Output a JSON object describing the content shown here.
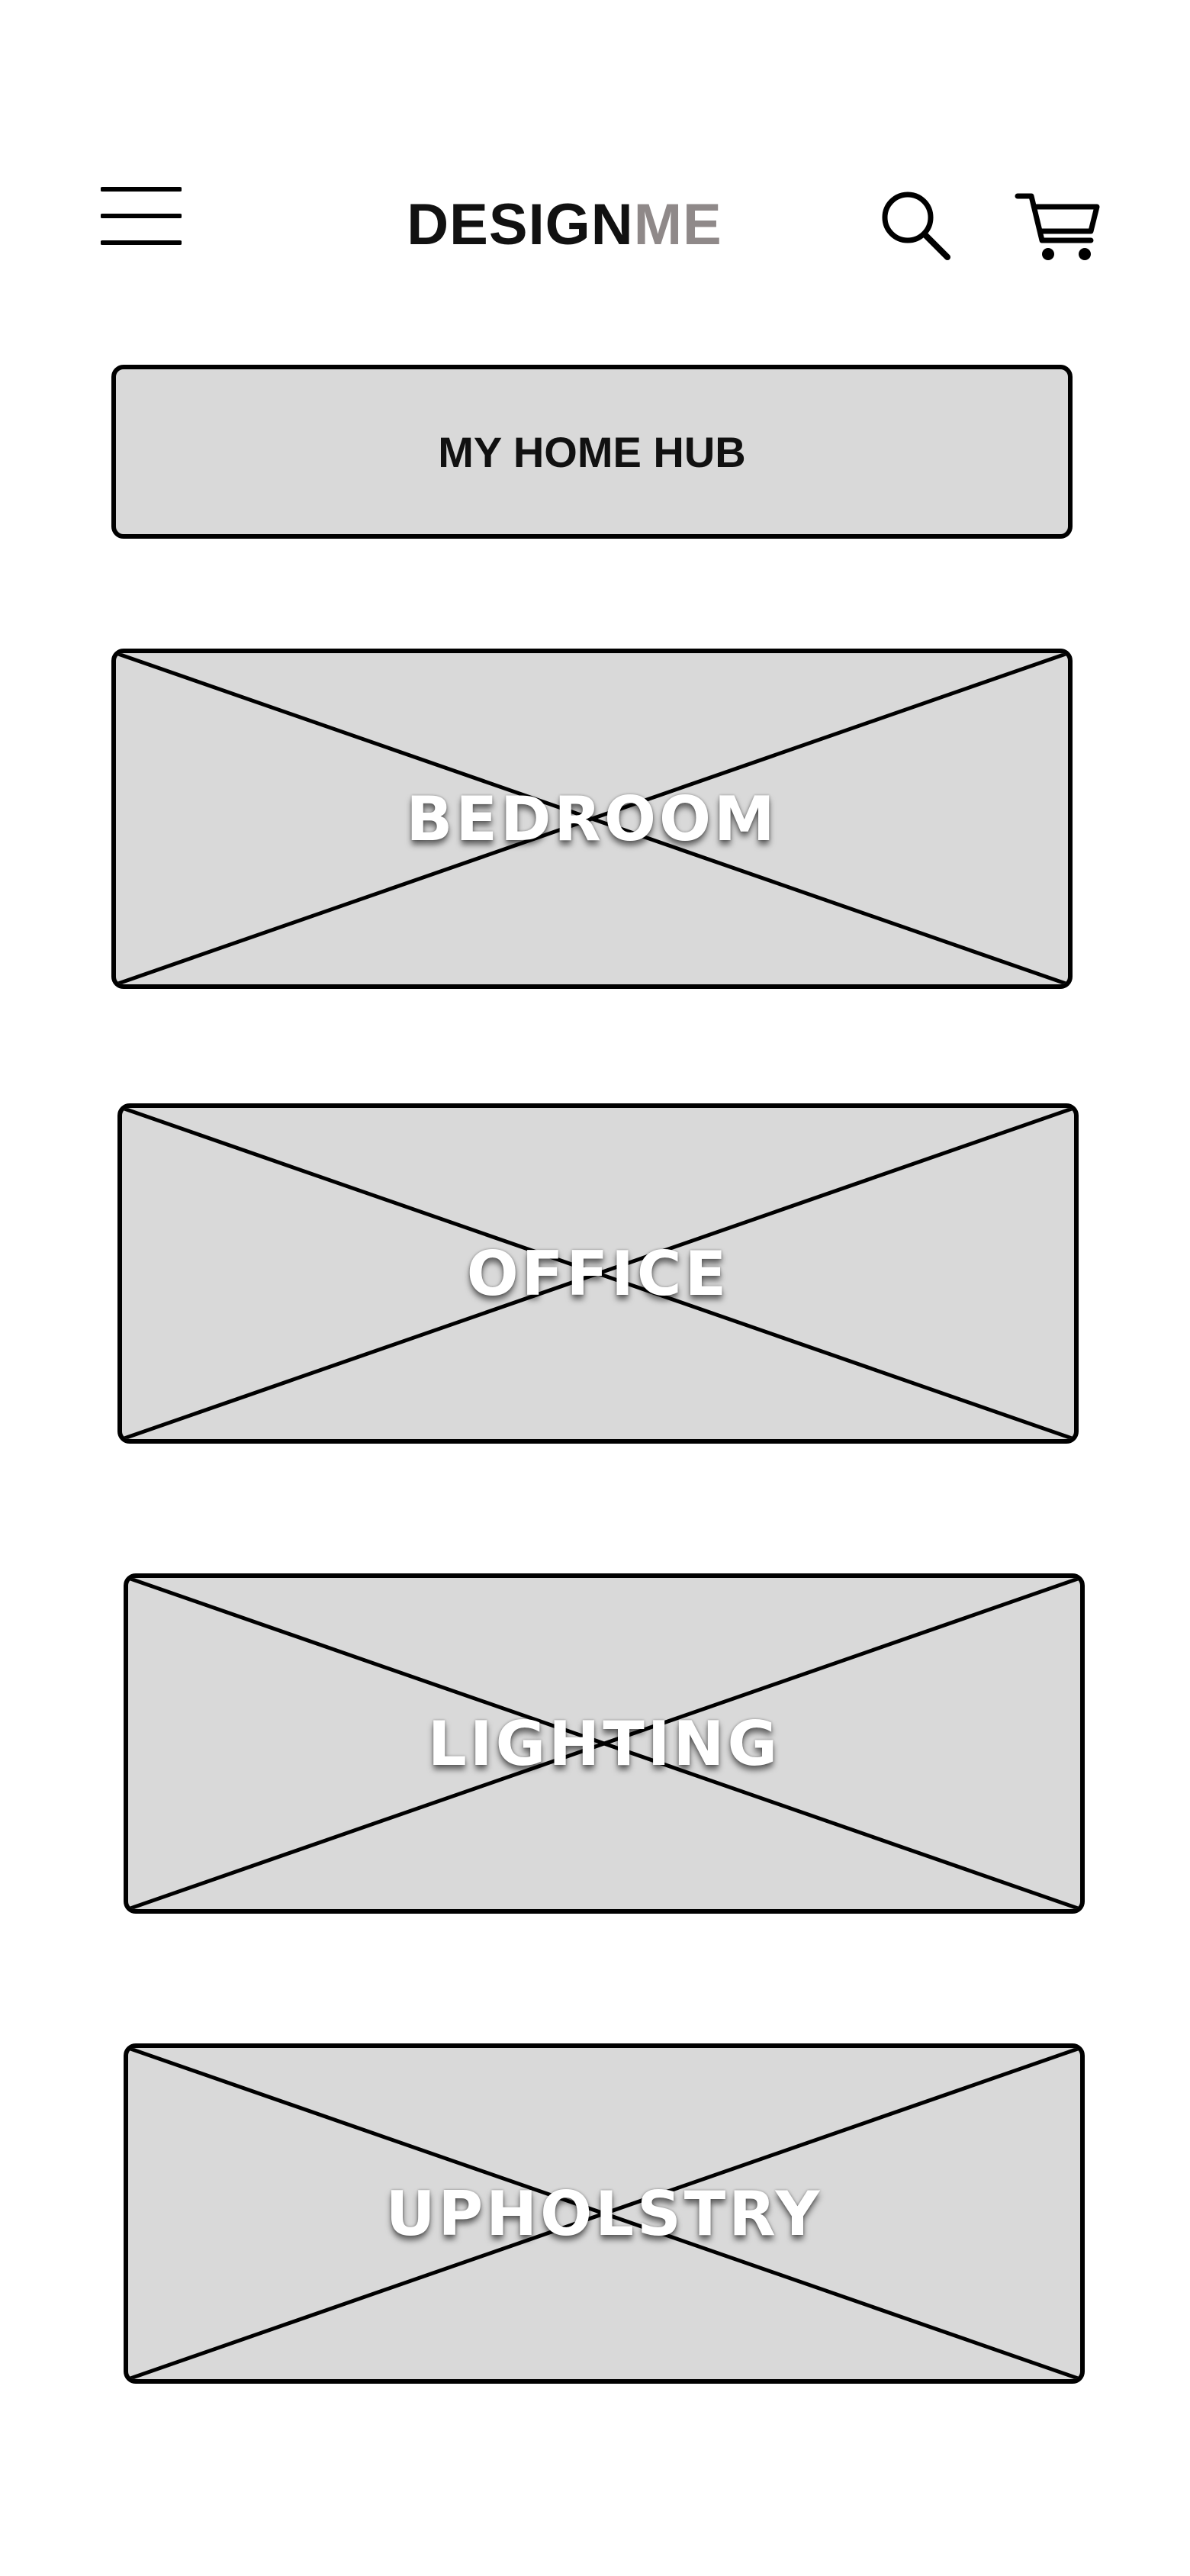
{
  "header": {
    "logo_primary": "DESIGN",
    "logo_accent": "ME",
    "icons": [
      "hamburger-menu-icon",
      "search-icon",
      "cart-icon"
    ]
  },
  "hub": {
    "label": "MY HOME HUB"
  },
  "categories": [
    {
      "label": "BEDROOM"
    },
    {
      "label": "OFFICE"
    },
    {
      "label": "LIGHTING"
    },
    {
      "label": "UPHOLSTRY"
    }
  ],
  "colors": {
    "card_fill": "#d9d9d9",
    "border": "#000000",
    "logo_accent": "#8f8989",
    "label_text": "#ffffff"
  }
}
